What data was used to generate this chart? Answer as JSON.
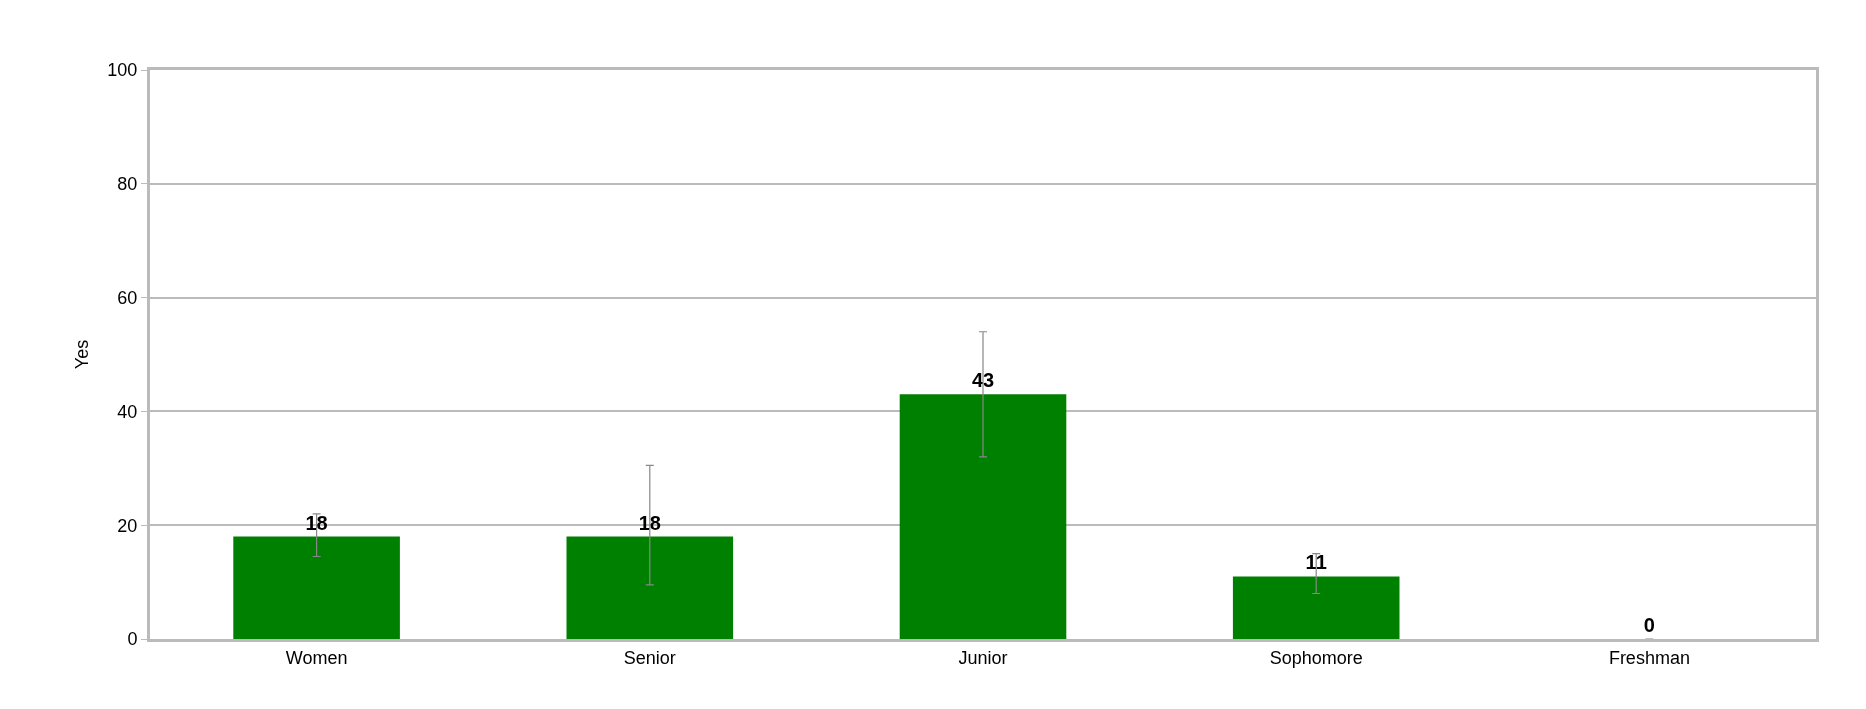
{
  "chart_data": {
    "type": "bar",
    "ylabel": "Yes",
    "categories": [
      "Women",
      "Senior",
      "Junior",
      "Sophomore",
      "Freshman"
    ],
    "values": [
      18,
      18,
      43,
      11,
      0
    ],
    "errors": [
      [
        14.5,
        22
      ],
      [
        9.5,
        30.5
      ],
      [
        32,
        54
      ],
      [
        8,
        15
      ],
      null
    ],
    "color": "#008000",
    "ylim": [
      0,
      100
    ],
    "yticks": [
      0,
      20,
      40,
      60,
      80,
      100
    ],
    "grid": "y",
    "data_labels": true
  }
}
